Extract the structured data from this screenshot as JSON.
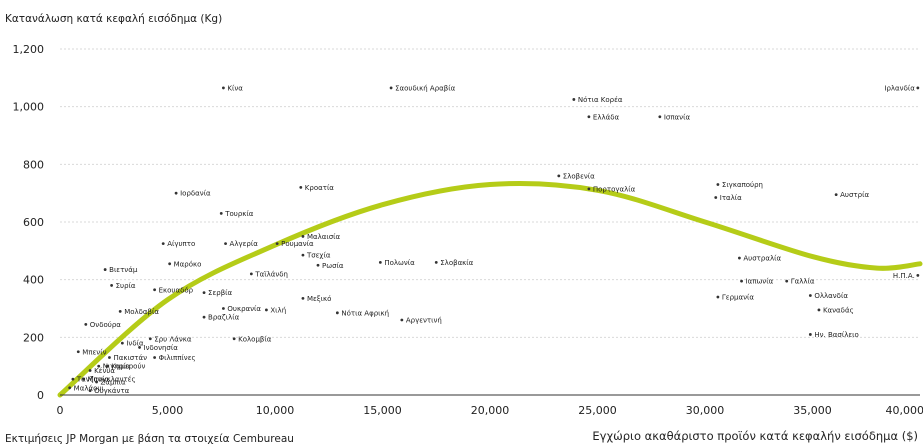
{
  "chart_data": {
    "type": "scatter",
    "ylabel": "Κατανάλωση κατά κεφαλή εισόδημα (Kg)",
    "xlabel": "Εγχώριο ακαθάριστο προϊόν κατά κεφαλήν εισόδημα ($)",
    "source": "Εκτιμήσεις JP Morgan με βάση τα στοιχεία Cembureau",
    "xlim": [
      0,
      40000
    ],
    "ylim": [
      0,
      1200
    ],
    "x_ticks": [
      0,
      5000,
      10000,
      15000,
      20000,
      25000,
      30000,
      35000,
      40000
    ],
    "x_tick_labels": [
      "0",
      "5,000",
      "10,000",
      "15,000",
      "20,000",
      "25,000",
      "30,000",
      "35,000",
      "40,000"
    ],
    "y_ticks": [
      0,
      200,
      400,
      600,
      800,
      1000,
      1200
    ],
    "y_tick_labels": [
      "0",
      "200",
      "400",
      "600",
      "800",
      "1,000",
      "1,200"
    ],
    "grid": "horizontal dashed",
    "trend_color": "#b5cc18",
    "point_color": "#333333",
    "points": [
      {
        "name": "Κίνα",
        "x": 7600,
        "y": 1065
      },
      {
        "name": "Σαουδική Αραβία",
        "x": 15400,
        "y": 1065
      },
      {
        "name": "Ιρλανδία",
        "x": 39900,
        "y": 1065
      },
      {
        "name": "Νότια Κορέα",
        "x": 23900,
        "y": 1025
      },
      {
        "name": "Ελλάδα",
        "x": 24600,
        "y": 965
      },
      {
        "name": "Ισπανία",
        "x": 27900,
        "y": 965
      },
      {
        "name": "Σλοβενία",
        "x": 23200,
        "y": 760
      },
      {
        "name": "Πορτογαλία",
        "x": 24600,
        "y": 715
      },
      {
        "name": "Σιγκαπούρη",
        "x": 30600,
        "y": 730
      },
      {
        "name": "Ιταλία",
        "x": 30500,
        "y": 685
      },
      {
        "name": "Αυστρία",
        "x": 36100,
        "y": 695
      },
      {
        "name": "Κροατία",
        "x": 11200,
        "y": 720
      },
      {
        "name": "Ιορδανία",
        "x": 5400,
        "y": 700
      },
      {
        "name": "Τουρκία",
        "x": 7500,
        "y": 630
      },
      {
        "name": "Μαλαισία",
        "x": 11300,
        "y": 550
      },
      {
        "name": "Αίγυπτο",
        "x": 4800,
        "y": 525
      },
      {
        "name": "Αλγερία",
        "x": 7700,
        "y": 525
      },
      {
        "name": "Ρουμανία",
        "x": 10100,
        "y": 525
      },
      {
        "name": "Τσεχία",
        "x": 11300,
        "y": 485
      },
      {
        "name": "Ρωσία",
        "x": 12000,
        "y": 450
      },
      {
        "name": "Πολωνία",
        "x": 14900,
        "y": 460
      },
      {
        "name": "Σλοβακία",
        "x": 17500,
        "y": 460
      },
      {
        "name": "Μαρόκο",
        "x": 5100,
        "y": 455
      },
      {
        "name": "Ταϊλάνδη",
        "x": 8900,
        "y": 420
      },
      {
        "name": "Βιετνάμ",
        "x": 2100,
        "y": 435
      },
      {
        "name": "Συρία",
        "x": 2400,
        "y": 380
      },
      {
        "name": "Εκουαδόρ",
        "x": 4400,
        "y": 365
      },
      {
        "name": "Σερβία",
        "x": 6700,
        "y": 355
      },
      {
        "name": "Αυστραλία",
        "x": 31600,
        "y": 475
      },
      {
        "name": "Ιαπωνία",
        "x": 31700,
        "y": 395
      },
      {
        "name": "Γαλλία",
        "x": 33800,
        "y": 395
      },
      {
        "name": "Γερμανία",
        "x": 30600,
        "y": 340
      },
      {
        "name": "Ολλανδία",
        "x": 34900,
        "y": 345
      },
      {
        "name": "Καναδάς",
        "x": 35300,
        "y": 295
      },
      {
        "name": "Ην. Βασίλειο",
        "x": 34900,
        "y": 210
      },
      {
        "name": "Η.Π.Α.",
        "x": 39900,
        "y": 415
      },
      {
        "name": "Μεξικό",
        "x": 11300,
        "y": 335
      },
      {
        "name": "Ουκρανία",
        "x": 7600,
        "y": 300
      },
      {
        "name": "Χιλή",
        "x": 9600,
        "y": 295
      },
      {
        "name": "Νότια Αφρική",
        "x": 12900,
        "y": 285
      },
      {
        "name": "Αργεντινή",
        "x": 15900,
        "y": 260
      },
      {
        "name": "Βραζιλία",
        "x": 6700,
        "y": 270
      },
      {
        "name": "Μολδαβία",
        "x": 2800,
        "y": 290
      },
      {
        "name": "Ονδούρα",
        "x": 1200,
        "y": 245
      },
      {
        "name": "Κολομβία",
        "x": 8100,
        "y": 195
      },
      {
        "name": "Σρυ Λάνκα",
        "x": 4200,
        "y": 195
      },
      {
        "name": "Ινδία",
        "x": 2900,
        "y": 180
      },
      {
        "name": "Ινδονησία",
        "x": 3700,
        "y": 165
      },
      {
        "name": "Φιλιππίνες",
        "x": 4400,
        "y": 130
      },
      {
        "name": "Μπενίν",
        "x": 850,
        "y": 150
      },
      {
        "name": "Πακιστάν",
        "x": 2300,
        "y": 130
      },
      {
        "name": "Νιγηρία",
        "x": 1800,
        "y": 100
      },
      {
        "name": "Καμερούν",
        "x": 2200,
        "y": 100
      },
      {
        "name": "Κένυα",
        "x": 1400,
        "y": 85
      },
      {
        "name": "Μπαγκλαντές",
        "x": 1100,
        "y": 55
      },
      {
        "name": "Τανζανία",
        "x": 600,
        "y": 55
      },
      {
        "name": "Ζάμπια",
        "x": 1700,
        "y": 45
      },
      {
        "name": "Μαλάουι",
        "x": 450,
        "y": 25
      },
      {
        "name": "Ουγκάντα",
        "x": 1400,
        "y": 15
      }
    ]
  }
}
